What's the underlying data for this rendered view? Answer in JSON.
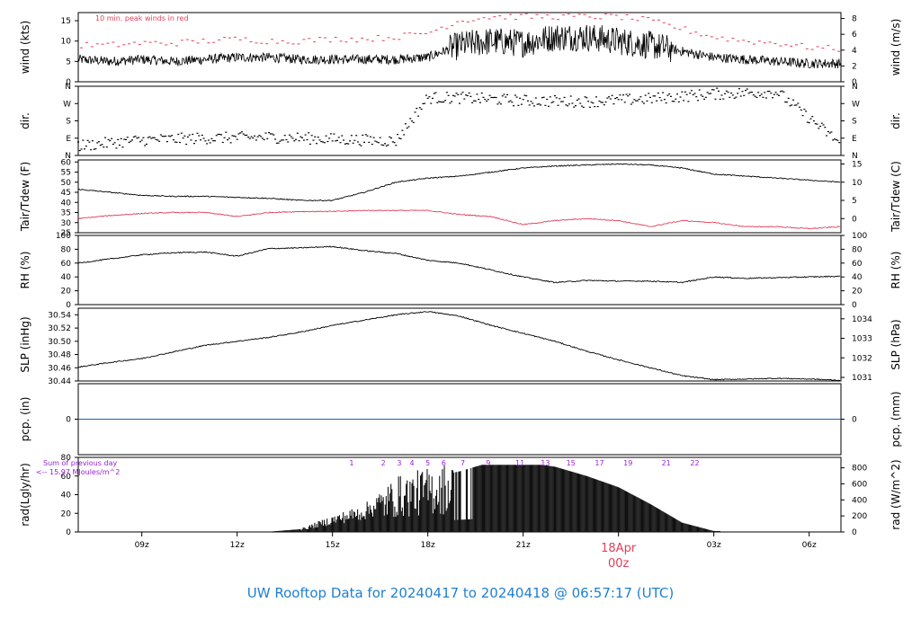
{
  "footer": {
    "title": "UW Rooftop Data for 20240417  to  20240418 @ 06:57:17  (UTC)"
  },
  "x_axis": {
    "ticks": [
      "09z",
      "12z",
      "15z",
      "18z",
      "21z",
      "03z",
      "06z"
    ],
    "date_label": "18Apr",
    "date_sublabel": "00z"
  },
  "panels": {
    "wind": {
      "left_label": "wind (kts)",
      "right_label": "wind (m/s)",
      "note": "10 min. peak winds in red",
      "left_ticks": [
        "0",
        "5",
        "10",
        "15"
      ],
      "right_ticks": [
        "0",
        "2",
        "4",
        "6",
        "8"
      ]
    },
    "dir": {
      "left_label": "dir.",
      "right_label": "dir.",
      "left_ticks": [
        "N",
        "E",
        "S",
        "W",
        "N"
      ],
      "right_ticks": [
        "N",
        "E",
        "S",
        "W",
        "N"
      ]
    },
    "temp": {
      "left_label": "Tair/Tdew (F)",
      "right_label": "Tair/Tdew (C)",
      "left_ticks": [
        "25",
        "30",
        "35",
        "40",
        "45",
        "50",
        "55",
        "60"
      ],
      "right_ticks": [
        "0",
        "5",
        "10",
        "15"
      ]
    },
    "rh": {
      "left_label": "RH (%)",
      "right_label": "RH (%)",
      "left_ticks": [
        "0",
        "20",
        "40",
        "60",
        "80",
        "100"
      ],
      "right_ticks": [
        "0",
        "20",
        "40",
        "60",
        "80",
        "100"
      ]
    },
    "slp": {
      "left_label": "SLP (inHg)",
      "right_label": "SLP (hPa)",
      "left_ticks": [
        "30.44",
        "30.46",
        "30.48",
        "30.50",
        "30.52",
        "30.54"
      ],
      "right_ticks": [
        "1031",
        "1032",
        "1033",
        "1034"
      ]
    },
    "pcp": {
      "left_label": "pcp. (in)",
      "right_label": "pcp. (mm)",
      "left_ticks": [
        "0"
      ],
      "right_ticks": [
        "0"
      ]
    },
    "rad": {
      "left_label": "rad(Lgly/hr)",
      "right_label": "rad (W/m^2)",
      "left_ticks": [
        "0",
        "20",
        "40",
        "60",
        "80"
      ],
      "right_ticks": [
        "0",
        "200",
        "400",
        "600",
        "800"
      ],
      "sum_note_1": "Sum of previous day",
      "sum_note_2": "<-- 15.97 MJoules/m^2",
      "hour_labels": [
        "1",
        "2",
        "3",
        "4",
        "5",
        "6",
        "7",
        "9",
        "11",
        "13",
        "15",
        "17",
        "19",
        "21",
        "22"
      ]
    }
  },
  "colors": {
    "trace": "#000000",
    "peak": "#e0405a",
    "dewpoint": "#e0405a",
    "pcp": "#1f5fbf",
    "footer": "#1f7fd1",
    "hours": "#9a1fd6"
  },
  "chart_data": [
    {
      "type": "line",
      "title": "",
      "ylabel": "wind (kts)",
      "ylim": [
        0,
        17
      ],
      "x": [
        "07z",
        "08z",
        "09z",
        "10z",
        "11z",
        "12z",
        "13z",
        "14z",
        "15z",
        "16z",
        "17z",
        "18z",
        "19z",
        "20z",
        "21z",
        "22z",
        "23z",
        "00z",
        "01z",
        "02z",
        "03z",
        "04z",
        "05z",
        "06z",
        "07z"
      ],
      "series": [
        {
          "name": "",
          "values": [
            5.5,
            5,
            5.5,
            5,
            5.5,
            6,
            6,
            5.5,
            5.5,
            5.5,
            5.5,
            6,
            9,
            10,
            9.5,
            11,
            11,
            10,
            9,
            7.5,
            6,
            5.5,
            5,
            4.5,
            4.5
          ]
        },
        {
          "name": "10 min. peak winds in red",
          "values": [
            9,
            9,
            9.5,
            9.5,
            10,
            10.5,
            10,
            10,
            10.5,
            10.5,
            11,
            12,
            15,
            16,
            16,
            16,
            16,
            16,
            15,
            13,
            11,
            10,
            9.5,
            8.5,
            8
          ]
        }
      ]
    },
    {
      "type": "scatter",
      "title": "",
      "ylabel": "dir.",
      "ylim": [
        0,
        360
      ],
      "x": [
        "07z",
        "09z",
        "11z",
        "13z",
        "15z",
        "17z",
        "18z",
        "19z",
        "21z",
        "23z",
        "01z",
        "03z",
        "05z",
        "07z"
      ],
      "series": [
        {
          "name": "",
          "values": [
            50,
            80,
            90,
            95,
            85,
            75,
            300,
            300,
            285,
            280,
            295,
            320,
            330,
            60
          ]
        }
      ]
    },
    {
      "type": "line",
      "title": "",
      "ylabel": "Tair/Tdew (F)",
      "ylim": [
        25,
        61
      ],
      "x": [
        "07z",
        "08z",
        "09z",
        "10z",
        "11z",
        "12z",
        "13z",
        "14z",
        "15z",
        "16z",
        "17z",
        "18z",
        "19z",
        "20z",
        "21z",
        "22z",
        "23z",
        "00z",
        "01z",
        "02z",
        "03z",
        "04z",
        "05z",
        "06z",
        "07z"
      ],
      "series": [
        {
          "name": "",
          "values": [
            46.5,
            45,
            43.5,
            43,
            43,
            42.5,
            42,
            41,
            41,
            45,
            50,
            52,
            53,
            55,
            57,
            58,
            58.5,
            59,
            58.5,
            57,
            54,
            53,
            52,
            51,
            50
          ]
        },
        {
          "name": "",
          "values": [
            32,
            33.5,
            34.5,
            35,
            35,
            33,
            35,
            35.5,
            35.5,
            36,
            36,
            36,
            34,
            33,
            29,
            31,
            32,
            31,
            28,
            31,
            30,
            28,
            28,
            27,
            28
          ]
        }
      ]
    },
    {
      "type": "line",
      "title": "",
      "ylabel": "RH (%)",
      "ylim": [
        0,
        100
      ],
      "x": [
        "07z",
        "08z",
        "09z",
        "10z",
        "11z",
        "12z",
        "13z",
        "14z",
        "15z",
        "16z",
        "17z",
        "18z",
        "19z",
        "20z",
        "21z",
        "22z",
        "23z",
        "00z",
        "01z",
        "02z",
        "03z",
        "04z",
        "05z",
        "06z",
        "07z"
      ],
      "series": [
        {
          "name": "",
          "values": [
            60,
            66,
            72,
            75,
            76,
            70,
            81,
            82,
            84,
            78,
            74,
            64,
            60,
            50,
            40,
            32,
            35,
            34,
            34,
            32,
            40,
            38,
            39,
            40,
            41
          ]
        }
      ]
    },
    {
      "type": "line",
      "title": "",
      "ylabel": "SLP (inHg)",
      "ylim": [
        30.44,
        30.55
      ],
      "x": [
        "07z",
        "08z",
        "09z",
        "10z",
        "11z",
        "12z",
        "13z",
        "14z",
        "15z",
        "16z",
        "17z",
        "18z",
        "19z",
        "20z",
        "21z",
        "22z",
        "23z",
        "00z",
        "01z",
        "02z",
        "03z",
        "04z",
        "05z",
        "06z",
        "07z"
      ],
      "series": [
        {
          "name": "",
          "values": [
            30.461,
            30.468,
            30.474,
            30.484,
            30.494,
            30.5,
            30.506,
            30.514,
            30.524,
            30.532,
            30.54,
            30.545,
            30.538,
            30.524,
            30.512,
            30.5,
            30.485,
            30.472,
            30.46,
            30.448,
            30.442,
            30.443,
            30.444,
            30.443,
            30.441
          ]
        }
      ]
    },
    {
      "type": "line",
      "title": "",
      "ylabel": "pcp. (in)",
      "ylim": [
        -1,
        1
      ],
      "x": [
        "07z",
        "07z"
      ],
      "series": [
        {
          "name": "",
          "values": [
            0,
            0
          ]
        }
      ]
    },
    {
      "type": "bar",
      "title": "",
      "ylabel": "rad(Lgly/hr)",
      "ylim": [
        0,
        80
      ],
      "x": [
        "13z",
        "14z",
        "15z",
        "16z",
        "17z",
        "18z",
        "19z",
        "20z",
        "21z",
        "22z",
        "23z",
        "00z",
        "01z",
        "02z",
        "03z"
      ],
      "values": [
        0.3,
        3,
        15,
        25,
        50,
        58,
        65,
        75,
        75,
        70,
        60,
        48,
        30,
        10,
        1
      ]
    }
  ]
}
